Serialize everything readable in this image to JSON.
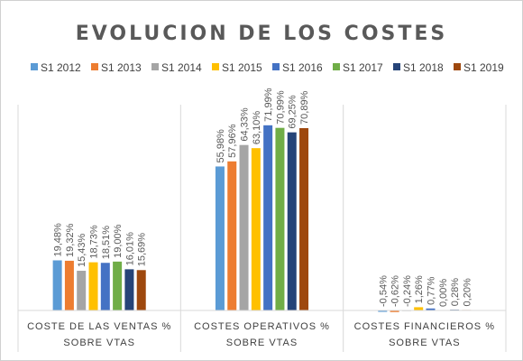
{
  "chart_data": {
    "type": "bar",
    "title": "EVOLUCION DE LOS COSTES",
    "categories": [
      [
        "COSTE DE LAS VENTAS %",
        "SOBRE VTAS"
      ],
      [
        "COSTES OPERATIVOS %",
        "SOBRE VTAS"
      ],
      [
        "COSTES FINANCIEROS %",
        "SOBRE VTAS"
      ]
    ],
    "legend_position": "top",
    "grid": false,
    "ylim": [
      -3,
      80
    ],
    "series": [
      {
        "name": "S1 2012",
        "color": "#5B9BD5",
        "values": [
          19.48,
          55.98,
          -0.54
        ],
        "labels": [
          "19,48%",
          "55,98%",
          "-0,54%"
        ]
      },
      {
        "name": "S1 2013",
        "color": "#ED7D31",
        "values": [
          19.32,
          57.96,
          -0.62
        ],
        "labels": [
          "19,32%",
          "57,96%",
          "-0,62%"
        ]
      },
      {
        "name": "S1 2014",
        "color": "#A5A5A5",
        "values": [
          15.43,
          64.33,
          -0.24
        ],
        "labels": [
          "15,43%",
          "64,33%",
          "-0,24%"
        ]
      },
      {
        "name": "S1 2015",
        "color": "#FFC000",
        "values": [
          18.73,
          63.1,
          1.26
        ],
        "labels": [
          "18,73%",
          "63,10%",
          "1,26%"
        ]
      },
      {
        "name": "S1 2016",
        "color": "#4472C4",
        "values": [
          18.51,
          71.99,
          0.77
        ],
        "labels": [
          "18,51%",
          "71,99%",
          "0,77%"
        ]
      },
      {
        "name": "S1 2017",
        "color": "#70AD47",
        "values": [
          19.0,
          70.99,
          0.0
        ],
        "labels": [
          "19,00%",
          "70,99%",
          "0,00%"
        ]
      },
      {
        "name": "S1 2018",
        "color": "#264478",
        "values": [
          16.01,
          69.25,
          0.28
        ],
        "labels": [
          "16,01%",
          "69,25%",
          "0,28%"
        ]
      },
      {
        "name": "S1 2019",
        "color": "#9E480E",
        "values": [
          15.69,
          70.89,
          0.2
        ],
        "labels": [
          "15,69%",
          "70,89%",
          "0,20%"
        ]
      }
    ]
  }
}
